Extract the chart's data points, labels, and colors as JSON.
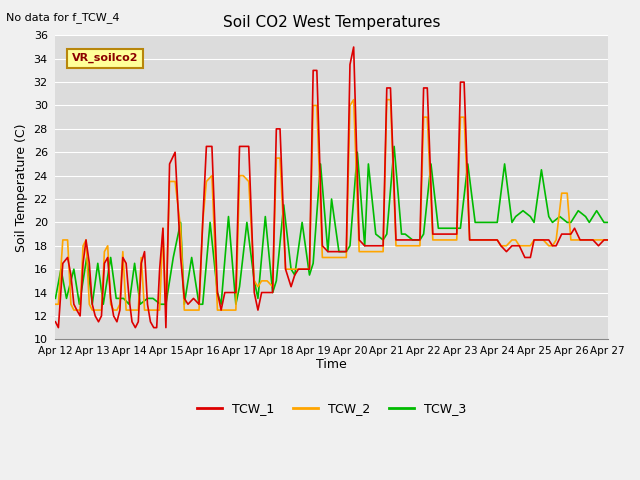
{
  "title": "Soil CO2 West Temperatures",
  "xlabel": "Time",
  "ylabel": "Soil Temperature (C)",
  "no_data_text": "No data for f_TCW_4",
  "vr_label": "VR_soilco2",
  "ylim": [
    10,
    36
  ],
  "xlim": [
    0,
    15
  ],
  "yticks": [
    10,
    12,
    14,
    16,
    18,
    20,
    22,
    24,
    26,
    28,
    30,
    32,
    34,
    36
  ],
  "bg_color": "#dcdcdc",
  "plot_bg_color": "#dcdcdc",
  "grid_color": "#ffffff",
  "tcw1_color": "#dd0000",
  "tcw2_color": "#ffa500",
  "tcw3_color": "#00bb00",
  "line_width": 1.2,
  "xtick_labels": [
    "Apr 12",
    "Apr 13",
    "Apr 14",
    "Apr 15",
    "Apr 16",
    "Apr 17",
    "Apr 18",
    "Apr 19",
    "Apr 20",
    "Apr 21",
    "Apr 22",
    "Apr 23",
    "Apr 24",
    "Apr 25",
    "Apr 26",
    "Apr 27"
  ],
  "tcw1_x": [
    0.0,
    0.08,
    0.2,
    0.33,
    0.42,
    0.5,
    0.58,
    0.67,
    0.75,
    0.83,
    0.92,
    1.0,
    1.08,
    1.17,
    1.25,
    1.33,
    1.42,
    1.5,
    1.58,
    1.67,
    1.75,
    1.83,
    1.92,
    2.0,
    2.08,
    2.17,
    2.25,
    2.33,
    2.42,
    2.5,
    2.58,
    2.67,
    2.75,
    2.83,
    2.92,
    3.0,
    3.1,
    3.25,
    3.4,
    3.5,
    3.6,
    3.75,
    3.9,
    4.0,
    4.1,
    4.25,
    4.4,
    4.5,
    4.6,
    4.75,
    4.9,
    5.0,
    5.1,
    5.25,
    5.4,
    5.5,
    5.6,
    5.75,
    5.9,
    6.0,
    6.1,
    6.25,
    6.4,
    6.5,
    6.6,
    6.75,
    6.9,
    7.0,
    7.1,
    7.25,
    7.4,
    7.5,
    7.6,
    7.75,
    7.9,
    8.0,
    8.1,
    8.25,
    8.4,
    8.5,
    8.6,
    8.75,
    8.9,
    9.0,
    9.1,
    9.25,
    9.4,
    9.5,
    9.6,
    9.75,
    9.9,
    10.0,
    10.1,
    10.25,
    10.4,
    10.5,
    10.6,
    10.75,
    10.9,
    11.0,
    11.1,
    11.25,
    11.4,
    11.5,
    11.6,
    11.75,
    11.9,
    12.0,
    12.1,
    12.25,
    12.4,
    12.5,
    12.6,
    12.75,
    12.9,
    13.0,
    13.1,
    13.25,
    13.4,
    13.5,
    13.6,
    13.75,
    13.9,
    14.0,
    14.1,
    14.25,
    14.4,
    14.5,
    14.6,
    14.75,
    14.9,
    15.0
  ],
  "tcw1_y": [
    11.5,
    11.0,
    16.5,
    17.0,
    15.5,
    13.0,
    12.5,
    12.0,
    16.5,
    18.5,
    16.5,
    13.0,
    12.0,
    11.5,
    12.0,
    16.5,
    17.0,
    13.5,
    12.0,
    11.5,
    12.5,
    17.0,
    16.5,
    13.5,
    11.5,
    11.0,
    11.5,
    16.5,
    17.5,
    13.0,
    11.5,
    11.0,
    11.0,
    16.0,
    19.5,
    11.0,
    25.0,
    26.0,
    17.0,
    13.5,
    13.0,
    13.5,
    13.0,
    20.0,
    26.5,
    26.5,
    14.0,
    12.5,
    14.0,
    14.0,
    14.0,
    26.5,
    26.5,
    26.5,
    14.0,
    12.5,
    14.0,
    14.0,
    14.0,
    28.0,
    28.0,
    16.0,
    14.5,
    15.5,
    16.0,
    16.0,
    16.0,
    33.0,
    33.0,
    18.0,
    17.5,
    17.5,
    17.5,
    17.5,
    17.5,
    33.5,
    35.0,
    18.5,
    18.0,
    18.0,
    18.0,
    18.0,
    18.0,
    31.5,
    31.5,
    18.5,
    18.5,
    18.5,
    18.5,
    18.5,
    18.5,
    31.5,
    31.5,
    19.0,
    19.0,
    19.0,
    19.0,
    19.0,
    19.0,
    32.0,
    32.0,
    18.5,
    18.5,
    18.5,
    18.5,
    18.5,
    18.5,
    18.5,
    18.0,
    17.5,
    18.0,
    18.0,
    18.0,
    17.0,
    17.0,
    18.5,
    18.5,
    18.5,
    18.5,
    18.0,
    18.0,
    19.0,
    19.0,
    19.0,
    19.5,
    18.5,
    18.5,
    18.5,
    18.5,
    18.0,
    18.5,
    18.5
  ],
  "tcw2_x": [
    0.0,
    0.08,
    0.2,
    0.33,
    0.42,
    0.5,
    0.58,
    0.67,
    0.75,
    0.83,
    0.92,
    1.0,
    1.08,
    1.17,
    1.25,
    1.33,
    1.42,
    1.5,
    1.58,
    1.67,
    1.75,
    1.83,
    1.92,
    2.0,
    2.08,
    2.17,
    2.25,
    2.33,
    2.42,
    2.5,
    2.58,
    2.67,
    2.75,
    2.83,
    2.92,
    3.0,
    3.1,
    3.25,
    3.4,
    3.5,
    3.6,
    3.75,
    3.9,
    4.0,
    4.1,
    4.25,
    4.4,
    4.5,
    4.6,
    4.75,
    4.9,
    5.0,
    5.1,
    5.25,
    5.4,
    5.5,
    5.6,
    5.75,
    5.9,
    6.0,
    6.1,
    6.25,
    6.4,
    6.5,
    6.6,
    6.75,
    6.9,
    7.0,
    7.1,
    7.25,
    7.4,
    7.5,
    7.6,
    7.75,
    7.9,
    8.0,
    8.1,
    8.25,
    8.4,
    8.5,
    8.6,
    8.75,
    8.9,
    9.0,
    9.1,
    9.25,
    9.4,
    9.5,
    9.6,
    9.75,
    9.9,
    10.0,
    10.1,
    10.25,
    10.4,
    10.5,
    10.6,
    10.75,
    10.9,
    11.0,
    11.1,
    11.25,
    11.4,
    11.5,
    11.6,
    11.75,
    11.9,
    12.0,
    12.1,
    12.25,
    12.4,
    12.5,
    12.6,
    12.75,
    12.9,
    13.0,
    13.1,
    13.25,
    13.4,
    13.5,
    13.6,
    13.75,
    13.9,
    14.0,
    14.1,
    14.25,
    14.4,
    14.5,
    14.6,
    14.75,
    14.9,
    15.0
  ],
  "tcw2_y": [
    13.0,
    13.0,
    18.5,
    18.5,
    13.0,
    12.5,
    12.5,
    12.5,
    18.0,
    18.5,
    13.0,
    12.5,
    12.5,
    12.5,
    12.5,
    17.5,
    18.0,
    13.0,
    12.5,
    12.5,
    13.0,
    17.5,
    12.5,
    12.5,
    12.5,
    12.5,
    12.5,
    17.0,
    12.5,
    12.5,
    12.5,
    12.5,
    12.5,
    12.5,
    19.5,
    12.5,
    23.5,
    23.5,
    19.5,
    12.5,
    12.5,
    12.5,
    12.5,
    20.0,
    23.5,
    24.0,
    12.5,
    12.5,
    12.5,
    12.5,
    12.5,
    24.0,
    24.0,
    23.5,
    15.0,
    14.5,
    15.0,
    15.0,
    14.5,
    25.5,
    25.5,
    16.0,
    16.0,
    16.0,
    16.0,
    16.0,
    16.0,
    30.0,
    30.0,
    17.0,
    17.0,
    17.0,
    17.0,
    17.0,
    17.0,
    30.0,
    30.5,
    17.5,
    17.5,
    17.5,
    17.5,
    17.5,
    17.5,
    30.5,
    30.5,
    18.0,
    18.0,
    18.0,
    18.0,
    18.0,
    18.0,
    29.0,
    29.0,
    18.5,
    18.5,
    18.5,
    18.5,
    18.5,
    18.5,
    29.0,
    29.0,
    18.5,
    18.5,
    18.5,
    18.5,
    18.5,
    18.5,
    18.5,
    18.0,
    18.0,
    18.5,
    18.5,
    18.0,
    18.0,
    18.0,
    18.5,
    18.5,
    18.5,
    18.0,
    18.0,
    18.5,
    22.5,
    22.5,
    18.5,
    18.5,
    18.5,
    18.5,
    18.5,
    18.5,
    18.5,
    18.5,
    18.5
  ],
  "tcw3_x": [
    0.0,
    0.15,
    0.3,
    0.5,
    0.65,
    0.85,
    1.0,
    1.15,
    1.3,
    1.5,
    1.65,
    1.85,
    2.0,
    2.15,
    2.3,
    2.5,
    2.65,
    2.85,
    3.0,
    3.2,
    3.4,
    3.5,
    3.7,
    3.9,
    4.0,
    4.2,
    4.4,
    4.5,
    4.7,
    4.9,
    5.0,
    5.2,
    5.4,
    5.5,
    5.7,
    5.9,
    6.0,
    6.2,
    6.4,
    6.5,
    6.7,
    6.9,
    7.0,
    7.2,
    7.4,
    7.5,
    7.7,
    7.9,
    8.0,
    8.2,
    8.4,
    8.5,
    8.7,
    8.9,
    9.0,
    9.2,
    9.4,
    9.5,
    9.7,
    9.9,
    10.0,
    10.2,
    10.4,
    10.5,
    10.7,
    10.9,
    11.0,
    11.2,
    11.4,
    11.5,
    11.7,
    11.9,
    12.0,
    12.2,
    12.4,
    12.5,
    12.7,
    12.9,
    13.0,
    13.2,
    13.4,
    13.5,
    13.7,
    13.9,
    14.0,
    14.2,
    14.4,
    14.5,
    14.7,
    14.9,
    15.0
  ],
  "tcw3_y": [
    13.5,
    16.0,
    13.5,
    16.0,
    13.0,
    17.0,
    13.0,
    16.5,
    13.0,
    17.0,
    13.5,
    13.5,
    13.0,
    16.5,
    13.0,
    13.5,
    13.5,
    13.0,
    13.0,
    17.0,
    20.0,
    13.0,
    17.0,
    13.0,
    13.0,
    20.0,
    14.0,
    13.0,
    20.5,
    13.0,
    14.5,
    20.0,
    15.0,
    13.5,
    20.5,
    14.0,
    15.0,
    21.5,
    16.0,
    15.5,
    20.0,
    15.5,
    16.5,
    25.0,
    17.5,
    22.0,
    17.5,
    17.5,
    18.0,
    26.0,
    18.0,
    25.0,
    19.0,
    18.5,
    19.0,
    26.5,
    19.0,
    19.0,
    18.5,
    18.5,
    19.0,
    25.0,
    19.5,
    19.5,
    19.5,
    19.5,
    19.5,
    25.0,
    20.0,
    20.0,
    20.0,
    20.0,
    20.0,
    25.0,
    20.0,
    20.5,
    21.0,
    20.5,
    20.0,
    24.5,
    20.5,
    20.0,
    20.5,
    20.0,
    20.0,
    21.0,
    20.5,
    20.0,
    21.0,
    20.0,
    20.0
  ]
}
